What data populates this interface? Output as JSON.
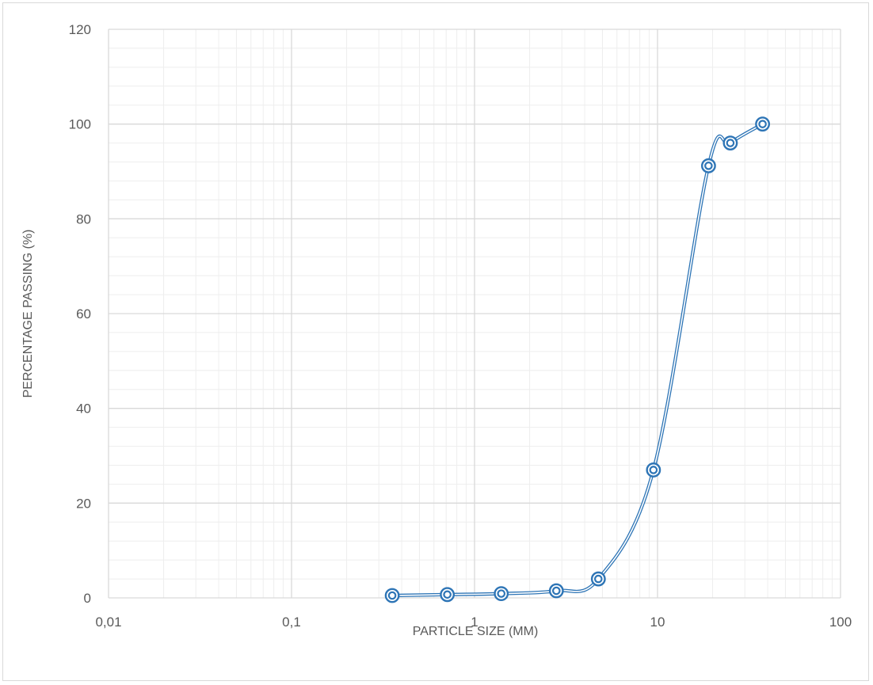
{
  "chart_data": {
    "type": "scatter",
    "title": "",
    "xlabel": "PARTICLE SIZE (MM)",
    "ylabel": "PERCENTAGE PASSING (%)",
    "x_scale": "log",
    "xlim": [
      0.01,
      100
    ],
    "ylim": [
      0,
      120
    ],
    "x_ticks": [
      0.01,
      0.1,
      1,
      10,
      100
    ],
    "x_tick_labels": [
      "0,01",
      "0,1",
      "1",
      "10",
      "100"
    ],
    "y_ticks": [
      0,
      20,
      40,
      60,
      80,
      100,
      120
    ],
    "y_tick_labels": [
      "0",
      "20",
      "40",
      "60",
      "80",
      "100",
      "120"
    ],
    "grid": {
      "major": true,
      "minor": true
    },
    "legend": "none",
    "line_style": "smooth double line with circle markers",
    "series": [
      {
        "x": [
          0.355,
          0.71,
          1.4,
          2.8,
          4.75,
          9.5,
          19,
          25,
          37.5
        ],
        "y": [
          0.5,
          0.7,
          0.9,
          1.5,
          4.0,
          27.0,
          91.2,
          96.0,
          100.0
        ]
      }
    ],
    "colors": {
      "series": "#2e75b6",
      "major_grid": "#d9d9d9",
      "minor_grid": "#eeeeee",
      "text": "#595959",
      "border": "#d9d9d9"
    }
  }
}
